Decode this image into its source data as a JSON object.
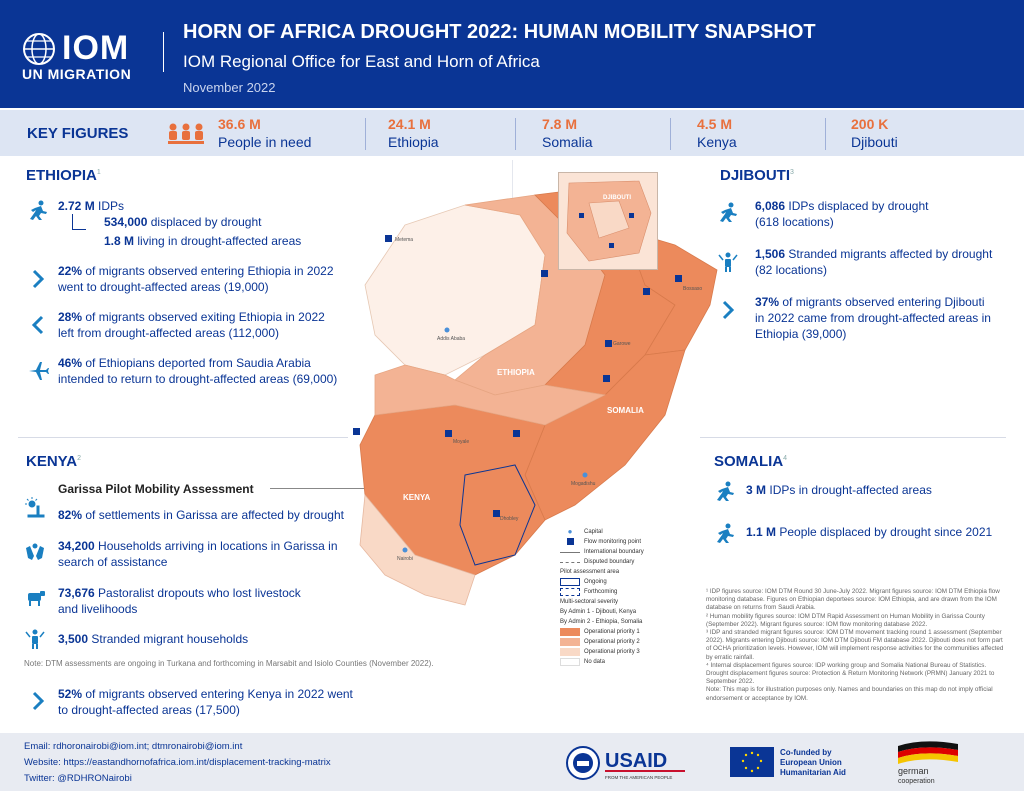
{
  "header": {
    "logo_text": "IOM",
    "logo_sub": "UN MIGRATION",
    "title": "HORN OF AFRICA DROUGHT 2022: HUMAN MOBILITY SNAPSHOT",
    "subtitle": "IOM Regional Office for East and Horn of Africa",
    "date": "November 2022"
  },
  "key_figures": {
    "label": "KEY FIGURES",
    "items": [
      {
        "value": "36.6 M",
        "name": "People in need"
      },
      {
        "value": "24.1 M",
        "name": "Ethiopia"
      },
      {
        "value": "7.8 M",
        "name": "Somalia"
      },
      {
        "value": "4.5 M",
        "name": "Kenya"
      },
      {
        "value": "200 K",
        "name": "Djibouti"
      }
    ]
  },
  "ethiopia": {
    "title": "ETHIOPIA",
    "sup": "1",
    "idps_value": "2.72 M",
    "idps_label": "IDPs",
    "displaced_value": "534,000",
    "displaced_label": "displaced by drought",
    "living_value": "1.8 M",
    "living_label": "living in drought-affected areas",
    "facts": [
      {
        "value": "22%",
        "text1": "of migrants observed entering Ethiopia in 2022",
        "text2": "went to drought-affected areas (19,000)"
      },
      {
        "value": "28%",
        "text1": "of migrants observed exiting Ethiopia in 2022",
        "text2": "left from drought-affected areas (112,000)"
      },
      {
        "value": "46%",
        "text1": "of Ethiopians deported from Saudia Arabia",
        "text2": "intended to return to drought-affected areas (69,000)"
      }
    ]
  },
  "djibouti": {
    "title": "DJIBOUTI",
    "sup": "3",
    "facts": [
      {
        "value": "6,086",
        "text1": "IDPs displaced by drought",
        "text2": "(618 locations)"
      },
      {
        "value": "1,506",
        "text1": "Stranded migrants affected by drought",
        "text2": "(82 locations)"
      },
      {
        "value": "37%",
        "text1": "of migrants observed entering Djibouti",
        "text2": "in 2022 came from drought-affected areas in",
        "text3": "Ethiopia (39,000)"
      }
    ]
  },
  "kenya": {
    "title": "KENYA",
    "sup": "2",
    "assessment_title": "Garissa Pilot Mobility Assessment",
    "facts": [
      {
        "value": "82%",
        "text1": "of settlements in Garissa are affected by drought"
      },
      {
        "value": "34,200",
        "text1": "Households arriving in locations in Garissa in",
        "text2": "search of assistance"
      },
      {
        "value": "73,676",
        "text1": "Pastoralist dropouts who lost livestock",
        "text2": "and livelihoods"
      },
      {
        "value": "3,500",
        "text1": "Stranded migrant households"
      }
    ],
    "note": "Note: DTM assessments are ongoing in Turkana and forthcoming in Marsabit and Isiolo Counties (November 2022).",
    "migrants_value": "52%",
    "migrants_text1": "of migrants observed entering Kenya in 2022 went",
    "migrants_text2": "to drought-affected areas (17,500)"
  },
  "somalia": {
    "title": "SOMALIA",
    "sup": "4",
    "facts": [
      {
        "value": "3 M",
        "text1": "IDPs in drought-affected areas"
      },
      {
        "value": "1.1 M",
        "text1": "People displaced by drought since 2021"
      }
    ]
  },
  "map": {
    "labels": {
      "ethiopia": "ETHIOPIA",
      "somalia": "SOMALIA",
      "kenya": "KENYA",
      "djibouti": "DJIBOUTI",
      "addis": "Addis Ababa",
      "mogadishu": "Mogadishu",
      "nairobi": "Nairobi",
      "metema": "Metema",
      "moyale": "Moyale",
      "dhobley": "Dhobley",
      "bossaso": "Bossaso",
      "garowe": "Garowe"
    },
    "legend": {
      "capital": "Capital",
      "fmp": "Flow monitoring point",
      "intl": "International boundary",
      "disputed": "Disputed boundary",
      "pilot": "Pilot assessment area",
      "ongoing": "Ongoing",
      "forthcoming": "Forthcoming",
      "multi": "Multi-sectoral severity",
      "by1": "By Admin 1 - Djibouti, Kenya",
      "by2": "By Admin 2 - Ethiopia, Somalia",
      "p1": "Operational priority 1",
      "p2": "Operational priority 2",
      "p3": "Operational priority 3",
      "nodata": "No data"
    },
    "colors": {
      "p1": "#ec8a5c",
      "p2": "#f3b394",
      "p3": "#f9d9c6",
      "nodata": "#ffffff",
      "fmp": "#0a3595"
    }
  },
  "footnotes": [
    "¹ IDP figures source: IOM DTM Round 30 June-July 2022. Migrant figures source: IOM DTM Ethiopia flow monitoring database. Figures on Ethiopian deportees source: IOM Ethiopia, and are drawn from the IOM database on returns from Saudi Arabia.",
    "² Human mobility figures source: IOM DTM Rapid Assessment on Human Mobility in Garissa County (September 2022). Migrant figures source: IOM flow monitoring database 2022.",
    "³ IDP and stranded migrant figures source: IOM DTM movement tracking round 1 assessment (September 2022). Migrants entering Djibouti source: IOM DTM Djibouti FM database 2022. Djibouti does not form part of OCHA prioritization levels. However, IOM will implement response activities for the communities affected by erratic rainfall.",
    "⁴ Internal displacement figures source: IDP working group and Somalia National Bureau of Statistics. Drought displacement figures source: Protection & Return Monitoring Network (PRMN) January 2021 to September 2022.",
    "Note: This map is for illustration purposes only. Names and boundaries on this map do not imply official endorsement or acceptance by IOM."
  ],
  "footer": {
    "email": "Email: rdhoronairobi@iom.int; dtmronairobi@iom.int",
    "website": "Website: https://eastandhornofafrica.iom.int/displacement-tracking-matrix",
    "twitter": "Twitter: @RDHRONairobi",
    "usaid": "USAID",
    "usaid_sub": "FROM THE AMERICAN PEOPLE",
    "eu_text1": "Co-funded by",
    "eu_text2": "European Union",
    "eu_text3": "Humanitarian Aid",
    "german1": "german",
    "german2": "cooperation"
  }
}
